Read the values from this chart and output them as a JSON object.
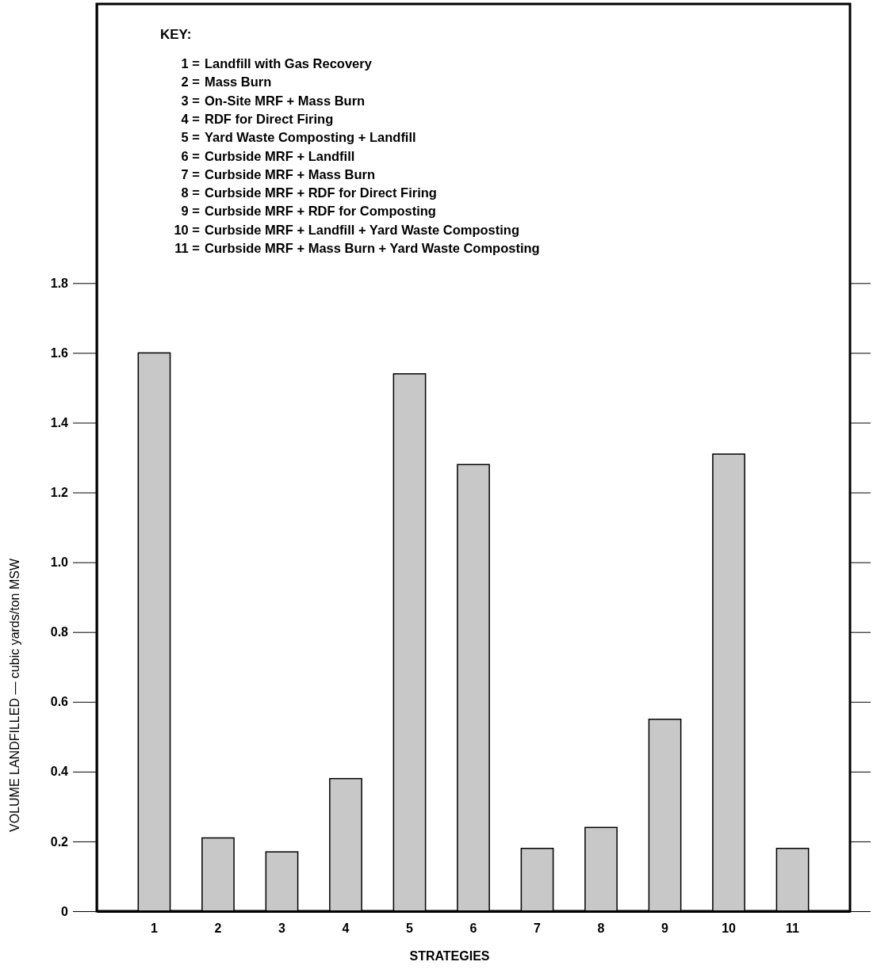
{
  "chart_data": {
    "type": "bar",
    "xlabel": "STRATEGIES",
    "ylabel": "VOLUME LANDFILLED — cubic yards/ton MSW",
    "categories": [
      "1",
      "2",
      "3",
      "4",
      "5",
      "6",
      "7",
      "8",
      "9",
      "10",
      "11"
    ],
    "values": [
      1.6,
      0.21,
      0.17,
      0.38,
      1.54,
      1.28,
      0.18,
      0.24,
      0.55,
      1.31,
      0.18
    ],
    "color": "#c8c8c8",
    "ylim": [
      0,
      2.6
    ],
    "yticks": [
      0,
      0.2,
      0.4,
      0.6,
      0.8,
      {
        "value": 1.0,
        "label": "1.0"
      },
      1.2,
      1.4,
      1.6,
      1.8
    ],
    "grid": false,
    "annotations": [
      "KEY:",
      "1 = Landfill with Gas Recovery",
      "2 = Mass Burn",
      "3 = On-Site MRF + Mass Burn",
      "4 = RDF for Direct Firing",
      "5 = Yard Waste Composting + Landfill",
      "6 = Curbside MRF + Landfill",
      "7 = Curbside MRF + Mass Burn",
      "8 = Curbside MRF + RDF for Direct Firing",
      "9 = Curbside MRF + RDF for Composting",
      "10 = Curbside MRF + Landfill + Yard Waste Composting",
      "11 = Curbside MRF + Mass Burn + Yard Waste Composting"
    ]
  }
}
